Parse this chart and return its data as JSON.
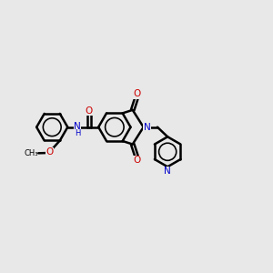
{
  "bg_color": "#e8e8e8",
  "bond_color": "#000000",
  "bond_width": 1.8,
  "N_color": "#0000cc",
  "O_color": "#cc0000",
  "fig_size": [
    3.0,
    3.0
  ],
  "dpi": 100,
  "xlim": [
    0,
    10
  ],
  "ylim": [
    0,
    10
  ]
}
